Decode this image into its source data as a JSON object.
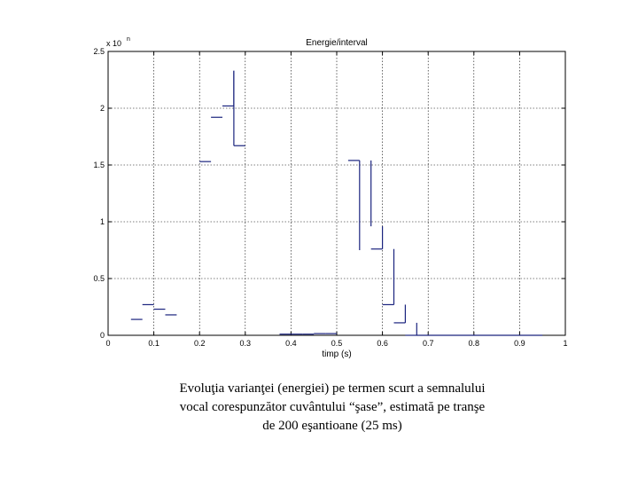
{
  "chart_data": {
    "type": "line",
    "title": "Energie/interval",
    "xlabel": "timp (s)",
    "ylabel": "",
    "y_scale_label": "x 10",
    "y_scale_exponent": "n",
    "xlim": [
      0,
      1
    ],
    "ylim": [
      0,
      2.5
    ],
    "x_ticks": [
      "0",
      "0.1",
      "0.2",
      "0.3",
      "0.4",
      "0.5",
      "0.6",
      "0.7",
      "0.8",
      "0.9",
      "1"
    ],
    "y_ticks": [
      "0",
      "0.5",
      "1",
      "1.5",
      "2",
      "2.5"
    ],
    "grid": true,
    "color": "#1a237e",
    "segments": [
      {
        "x0": 0.05,
        "x1": 0.075,
        "y": 0.14
      },
      {
        "x0": 0.075,
        "x1": 0.1,
        "y": 0.27
      },
      {
        "x0": 0.1,
        "x1": 0.125,
        "y": 0.23
      },
      {
        "x0": 0.125,
        "x1": 0.15,
        "y": 0.18
      },
      {
        "x0": 0.2,
        "x1": 0.225,
        "y": 1.53
      },
      {
        "x0": 0.225,
        "x1": 0.25,
        "y": 1.92
      },
      {
        "x0": 0.25,
        "x1": 0.275,
        "y": 2.02
      },
      {
        "x0": 0.275,
        "x1": 0.3,
        "y": 1.67
      },
      {
        "x0": 0.375,
        "x1": 0.4,
        "y": 0.01
      },
      {
        "x0": 0.4,
        "x1": 0.425,
        "y": 0.01
      },
      {
        "x0": 0.425,
        "x1": 0.45,
        "y": 0.01
      },
      {
        "x0": 0.45,
        "x1": 0.475,
        "y": 0.015
      },
      {
        "x0": 0.475,
        "x1": 0.5,
        "y": 0.015
      },
      {
        "x0": 0.525,
        "x1": 0.55,
        "y": 1.54
      },
      {
        "x0": 0.575,
        "x1": 0.6,
        "y": 0.76
      },
      {
        "x0": 0.6,
        "x1": 0.625,
        "y": 0.27
      },
      {
        "x0": 0.625,
        "x1": 0.65,
        "y": 0.11
      },
      {
        "x0": 0.65,
        "x1": 0.675,
        "y": 0.0
      },
      {
        "x0": 0.675,
        "x1": 0.95,
        "y": 0.0
      }
    ],
    "verticals": [
      {
        "x": 0.275,
        "y0": 1.67,
        "y1": 2.33
      },
      {
        "x": 0.275,
        "y0": 2.02,
        "y1": 2.33
      },
      {
        "x": 0.55,
        "y0": 0.75,
        "y1": 1.54
      },
      {
        "x": 0.575,
        "y0": 0.96,
        "y1": 1.54
      },
      {
        "x": 0.6,
        "y0": 0.76,
        "y1": 0.96
      },
      {
        "x": 0.625,
        "y0": 0.27,
        "y1": 0.76
      },
      {
        "x": 0.65,
        "y0": 0.11,
        "y1": 0.27
      },
      {
        "x": 0.675,
        "y0": 0.0,
        "y1": 0.11
      }
    ]
  },
  "caption": {
    "line1": "Evoluţia varianţei (energiei) pe termen scurt a semnalului",
    "line2": "vocal corespunzător cuvântului “şase”, estimată pe tranşe",
    "line3": "de 200 eşantioane (25 ms)"
  }
}
